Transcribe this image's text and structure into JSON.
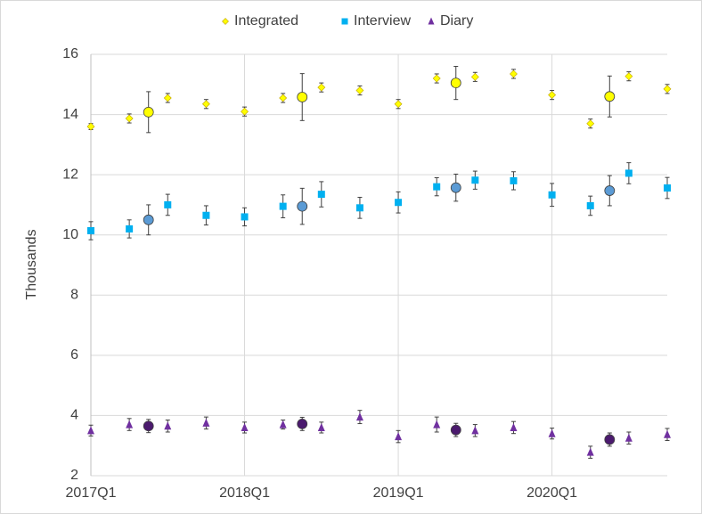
{
  "chart_data": {
    "type": "scatter",
    "y_label": "Thousands",
    "xlim": [
      0,
      15
    ],
    "xticks": [
      {
        "value": 0,
        "label": "2017Q1"
      },
      {
        "value": 4,
        "label": "2018Q1"
      },
      {
        "value": 8,
        "label": "2019Q1"
      },
      {
        "value": 12,
        "label": "2020Q1"
      }
    ],
    "ylim": [
      2,
      16
    ],
    "yticks": [
      2,
      4,
      6,
      8,
      10,
      12,
      14,
      16
    ],
    "grid": true,
    "legend": "top",
    "series": [
      {
        "name": "Integrated",
        "color": "#ffff00",
        "annual_color": "#ffff00",
        "marker": "diamond",
        "x": [
          0,
          1,
          1.5,
          2,
          3,
          4,
          5,
          5.5,
          6,
          7,
          8,
          9,
          9.5,
          10,
          11,
          12,
          13,
          13.5,
          14,
          15
        ],
        "values": [
          13.6,
          13.87,
          14.08,
          14.55,
          14.35,
          14.1,
          14.55,
          14.58,
          14.9,
          14.8,
          14.35,
          15.2,
          15.05,
          15.25,
          15.35,
          14.65,
          13.7,
          14.6,
          15.27,
          14.85
        ],
        "errors": [
          0.1,
          0.15,
          0.68,
          0.15,
          0.15,
          0.15,
          0.15,
          0.78,
          0.15,
          0.15,
          0.15,
          0.15,
          0.55,
          0.15,
          0.15,
          0.15,
          0.15,
          0.68,
          0.15,
          0.15
        ]
      },
      {
        "name": "Interview",
        "color": "#00b0f0",
        "annual_color": "#5b9bd5",
        "marker": "square",
        "x": [
          0,
          1,
          1.5,
          2,
          3,
          4,
          5,
          5.5,
          6,
          7,
          8,
          9,
          9.5,
          10,
          11,
          12,
          13,
          13.5,
          14,
          15
        ],
        "values": [
          10.14,
          10.2,
          10.5,
          11.0,
          10.65,
          10.6,
          10.95,
          10.95,
          11.35,
          10.9,
          11.08,
          11.6,
          11.57,
          11.82,
          11.8,
          11.33,
          10.97,
          11.47,
          12.05,
          11.56
        ],
        "errors": [
          0.3,
          0.3,
          0.5,
          0.35,
          0.32,
          0.3,
          0.38,
          0.6,
          0.42,
          0.35,
          0.35,
          0.3,
          0.45,
          0.3,
          0.3,
          0.38,
          0.32,
          0.5,
          0.35,
          0.35
        ]
      },
      {
        "name": "Diary",
        "color": "#7030a0",
        "annual_color": "#4b1a6e",
        "marker": "triangle",
        "x": [
          0,
          1,
          1.5,
          2,
          3,
          4,
          5,
          5.5,
          6,
          7,
          8,
          9,
          9.5,
          10,
          11,
          12,
          13,
          13.5,
          14,
          15
        ],
        "values": [
          3.5,
          3.7,
          3.65,
          3.65,
          3.75,
          3.6,
          3.7,
          3.72,
          3.6,
          3.95,
          3.3,
          3.7,
          3.52,
          3.5,
          3.6,
          3.4,
          2.78,
          3.2,
          3.25,
          3.37
        ],
        "errors": [
          0.18,
          0.2,
          0.22,
          0.2,
          0.2,
          0.18,
          0.15,
          0.22,
          0.18,
          0.22,
          0.2,
          0.25,
          0.22,
          0.2,
          0.2,
          0.18,
          0.2,
          0.22,
          0.2,
          0.2
        ]
      }
    ]
  }
}
